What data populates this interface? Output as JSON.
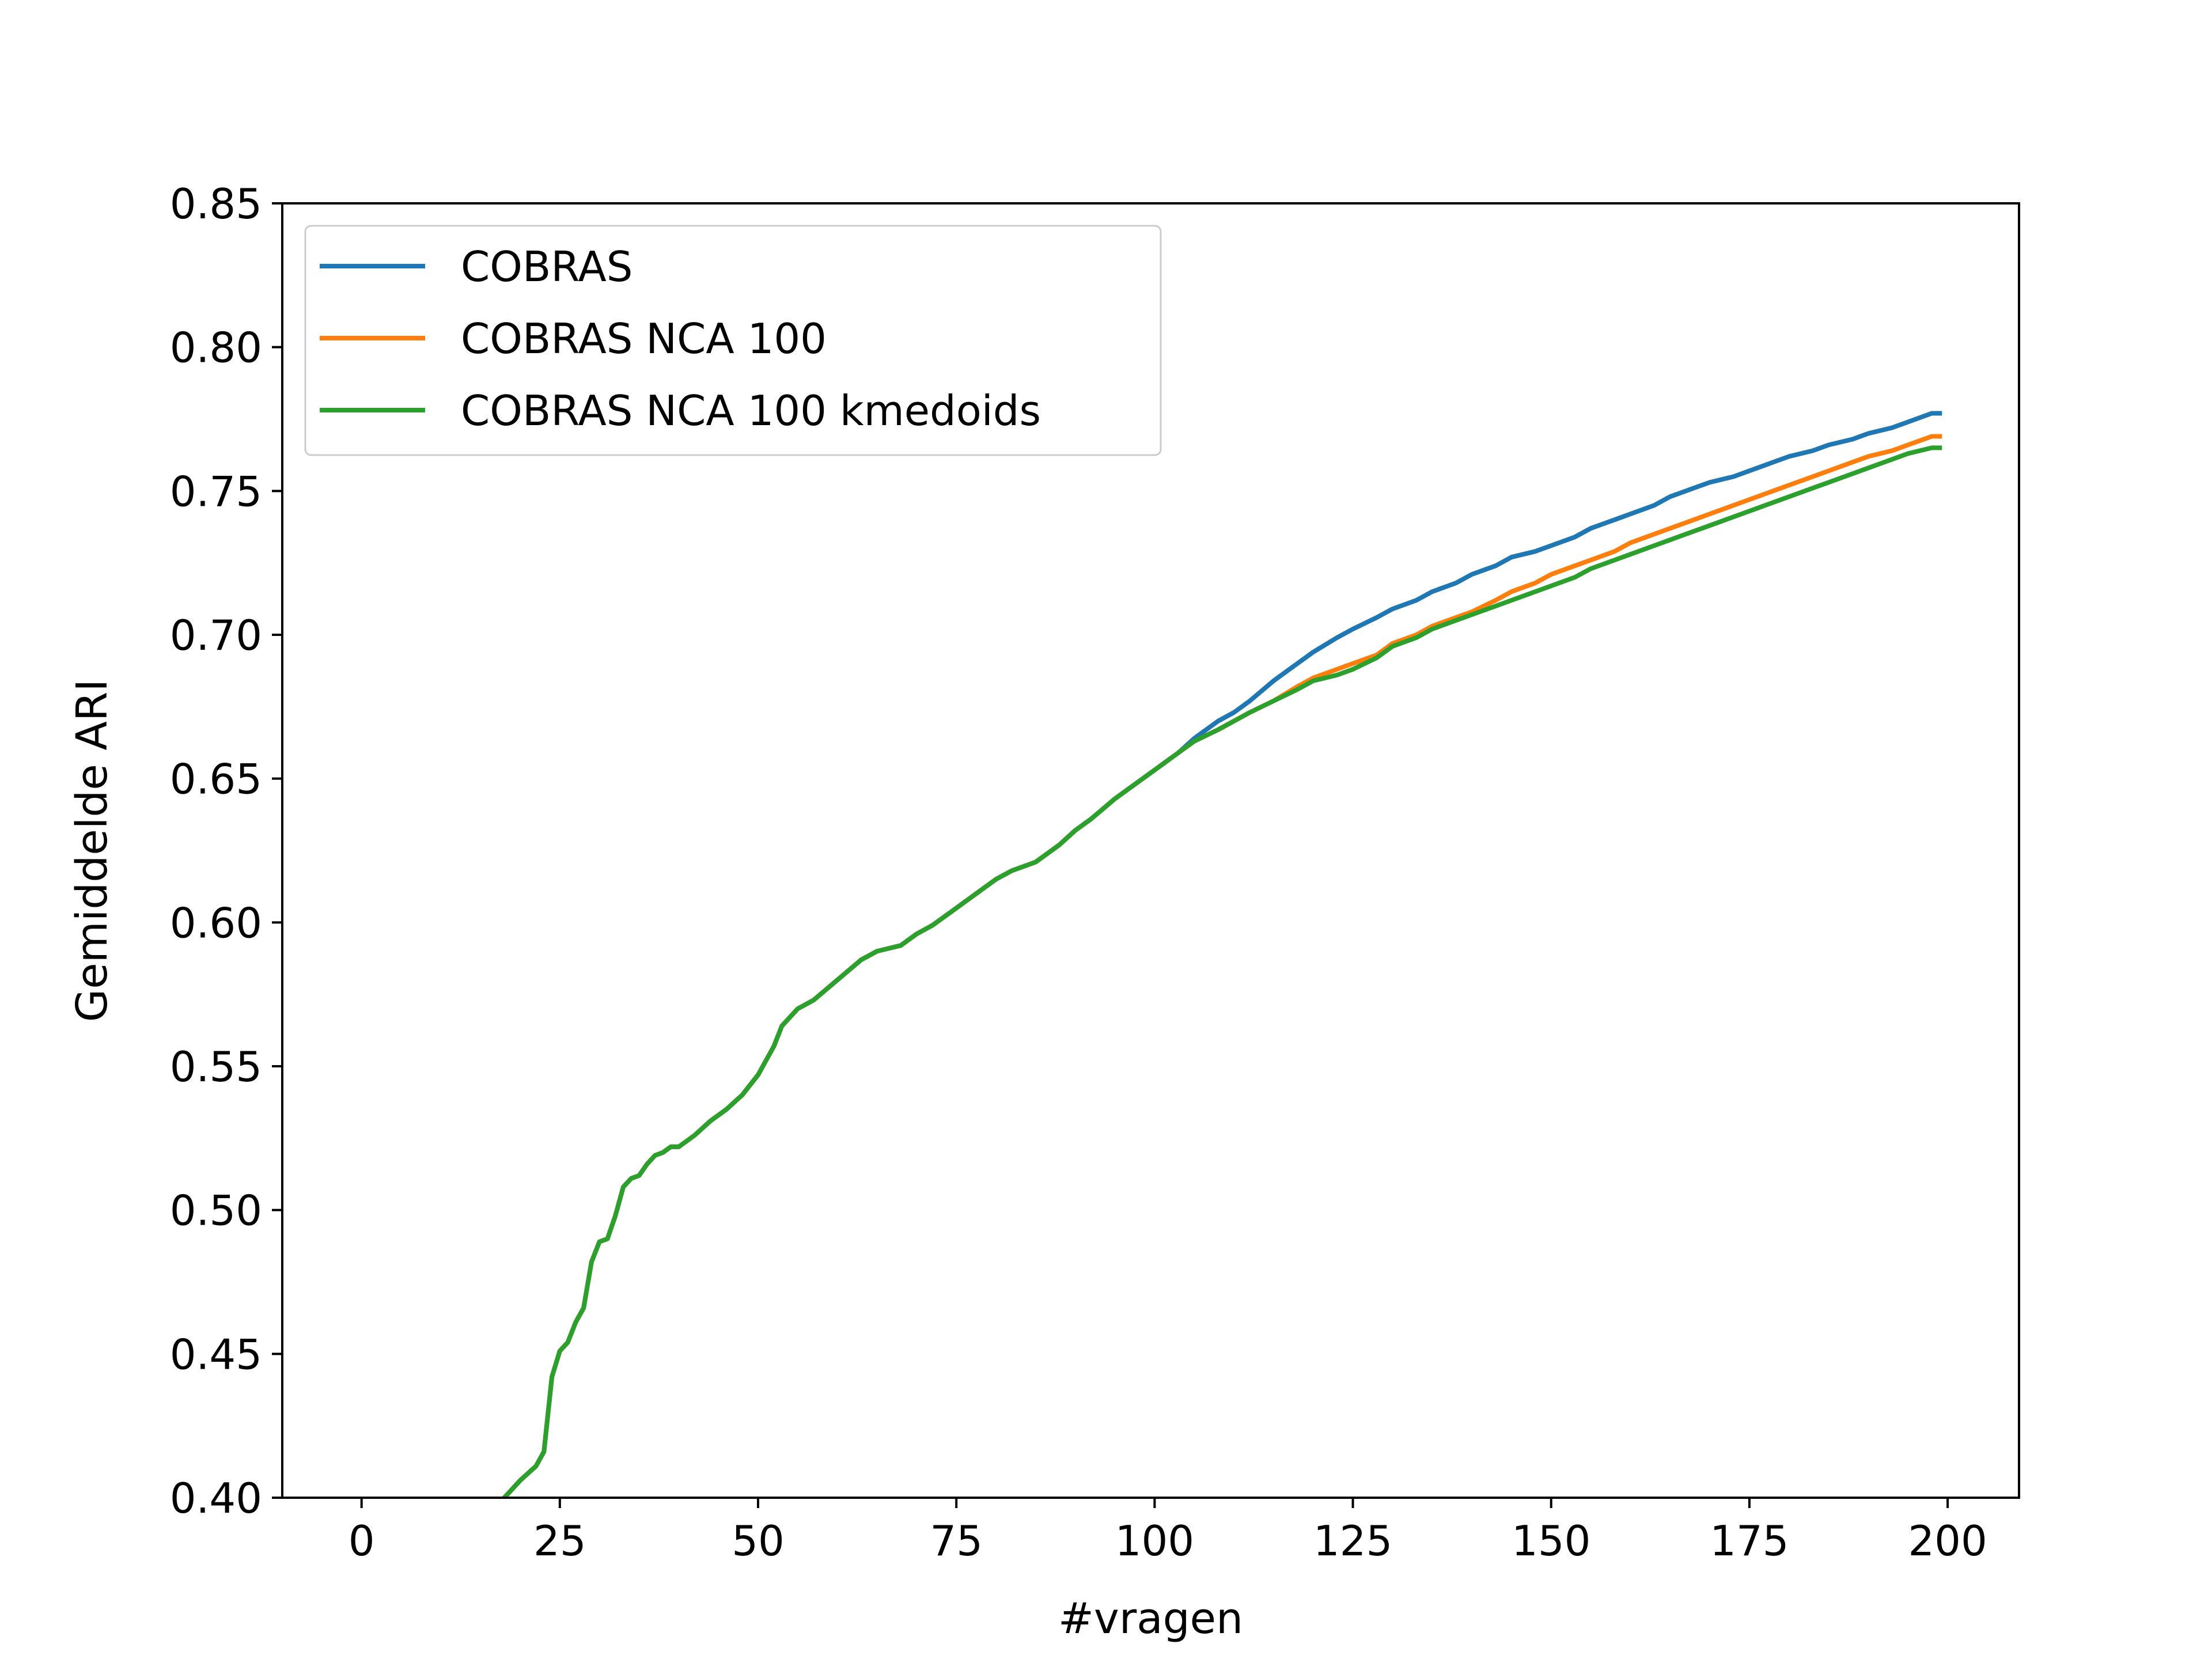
{
  "chart_data": {
    "type": "line",
    "title": "",
    "xlabel": "#vragen",
    "ylabel": "Gemiddelde ARI",
    "xlim": [
      -10,
      209
    ],
    "ylim": [
      0.4,
      0.85
    ],
    "xticks": [
      0,
      25,
      50,
      75,
      100,
      125,
      150,
      175,
      200
    ],
    "xtick_labels": [
      "0",
      "25",
      "50",
      "75",
      "100",
      "125",
      "150",
      "175",
      "200"
    ],
    "yticks": [
      0.4,
      0.45,
      0.5,
      0.55,
      0.6,
      0.65,
      0.7,
      0.75,
      0.8,
      0.85
    ],
    "ytick_labels": [
      "0.40",
      "0.45",
      "0.50",
      "0.55",
      "0.60",
      "0.65",
      "0.70",
      "0.75",
      "0.80",
      "0.85"
    ],
    "grid": false,
    "legend_position": "top-left",
    "shared_prefix": {
      "x": [
        18,
        20,
        22,
        23,
        24,
        25,
        26,
        27,
        28,
        29,
        30,
        31,
        32,
        33,
        34,
        35,
        36,
        37,
        38,
        39,
        40,
        42,
        44,
        46,
        48,
        50,
        52,
        53,
        55,
        57,
        60,
        63,
        65,
        68,
        70,
        72,
        75,
        77,
        80,
        82,
        85,
        88,
        90,
        92,
        95,
        97,
        100,
        103
      ],
      "y": [
        0.4,
        0.406,
        0.411,
        0.416,
        0.442,
        0.451,
        0.454,
        0.461,
        0.466,
        0.482,
        0.489,
        0.49,
        0.498,
        0.508,
        0.511,
        0.512,
        0.516,
        0.519,
        0.52,
        0.522,
        0.522,
        0.526,
        0.531,
        0.535,
        0.54,
        0.547,
        0.557,
        0.564,
        0.57,
        0.573,
        0.58,
        0.587,
        0.59,
        0.592,
        0.596,
        0.599,
        0.605,
        0.609,
        0.615,
        0.618,
        0.621,
        0.627,
        0.632,
        0.636,
        0.643,
        0.647,
        0.653,
        0.659
      ]
    },
    "series": [
      {
        "name": "COBRAS",
        "color": "#1f77b4",
        "x": [
          105,
          108,
          110,
          112,
          115,
          118,
          120,
          123,
          125,
          128,
          130,
          133,
          135,
          138,
          140,
          143,
          145,
          148,
          150,
          153,
          155,
          158,
          160,
          163,
          165,
          168,
          170,
          173,
          175,
          178,
          180,
          183,
          185,
          188,
          190,
          193,
          195,
          198,
          199
        ],
        "y": [
          0.664,
          0.67,
          0.673,
          0.677,
          0.684,
          0.69,
          0.694,
          0.699,
          0.702,
          0.706,
          0.709,
          0.712,
          0.715,
          0.718,
          0.721,
          0.724,
          0.727,
          0.729,
          0.731,
          0.734,
          0.737,
          0.74,
          0.742,
          0.745,
          0.748,
          0.751,
          0.753,
          0.755,
          0.757,
          0.76,
          0.762,
          0.764,
          0.766,
          0.768,
          0.77,
          0.772,
          0.774,
          0.777,
          0.777
        ]
      },
      {
        "name": "COBRAS NCA 100",
        "color": "#ff7f0e",
        "x": [
          105,
          108,
          110,
          112,
          115,
          118,
          120,
          123,
          125,
          128,
          130,
          133,
          135,
          138,
          140,
          143,
          145,
          148,
          150,
          153,
          155,
          158,
          160,
          163,
          165,
          168,
          170,
          173,
          175,
          178,
          180,
          183,
          185,
          188,
          190,
          193,
          195,
          198,
          199
        ],
        "y": [
          0.663,
          0.667,
          0.67,
          0.673,
          0.677,
          0.682,
          0.685,
          0.688,
          0.69,
          0.693,
          0.697,
          0.7,
          0.703,
          0.706,
          0.708,
          0.712,
          0.715,
          0.718,
          0.721,
          0.724,
          0.726,
          0.729,
          0.732,
          0.735,
          0.737,
          0.74,
          0.742,
          0.745,
          0.747,
          0.75,
          0.752,
          0.755,
          0.757,
          0.76,
          0.762,
          0.764,
          0.766,
          0.769,
          0.769
        ]
      },
      {
        "name": "COBRAS NCA 100 kmedoids",
        "color": "#2ca02c",
        "x": [
          105,
          108,
          110,
          112,
          115,
          118,
          120,
          123,
          125,
          128,
          130,
          133,
          135,
          138,
          140,
          143,
          145,
          148,
          150,
          153,
          155,
          158,
          160,
          163,
          165,
          168,
          170,
          173,
          175,
          178,
          180,
          183,
          185,
          188,
          190,
          193,
          195,
          198,
          199
        ],
        "y": [
          0.663,
          0.667,
          0.67,
          0.673,
          0.677,
          0.681,
          0.684,
          0.686,
          0.688,
          0.692,
          0.696,
          0.699,
          0.702,
          0.705,
          0.707,
          0.71,
          0.712,
          0.715,
          0.717,
          0.72,
          0.723,
          0.726,
          0.728,
          0.731,
          0.733,
          0.736,
          0.738,
          0.741,
          0.743,
          0.746,
          0.748,
          0.751,
          0.753,
          0.756,
          0.758,
          0.761,
          0.763,
          0.765,
          0.765
        ]
      }
    ]
  }
}
